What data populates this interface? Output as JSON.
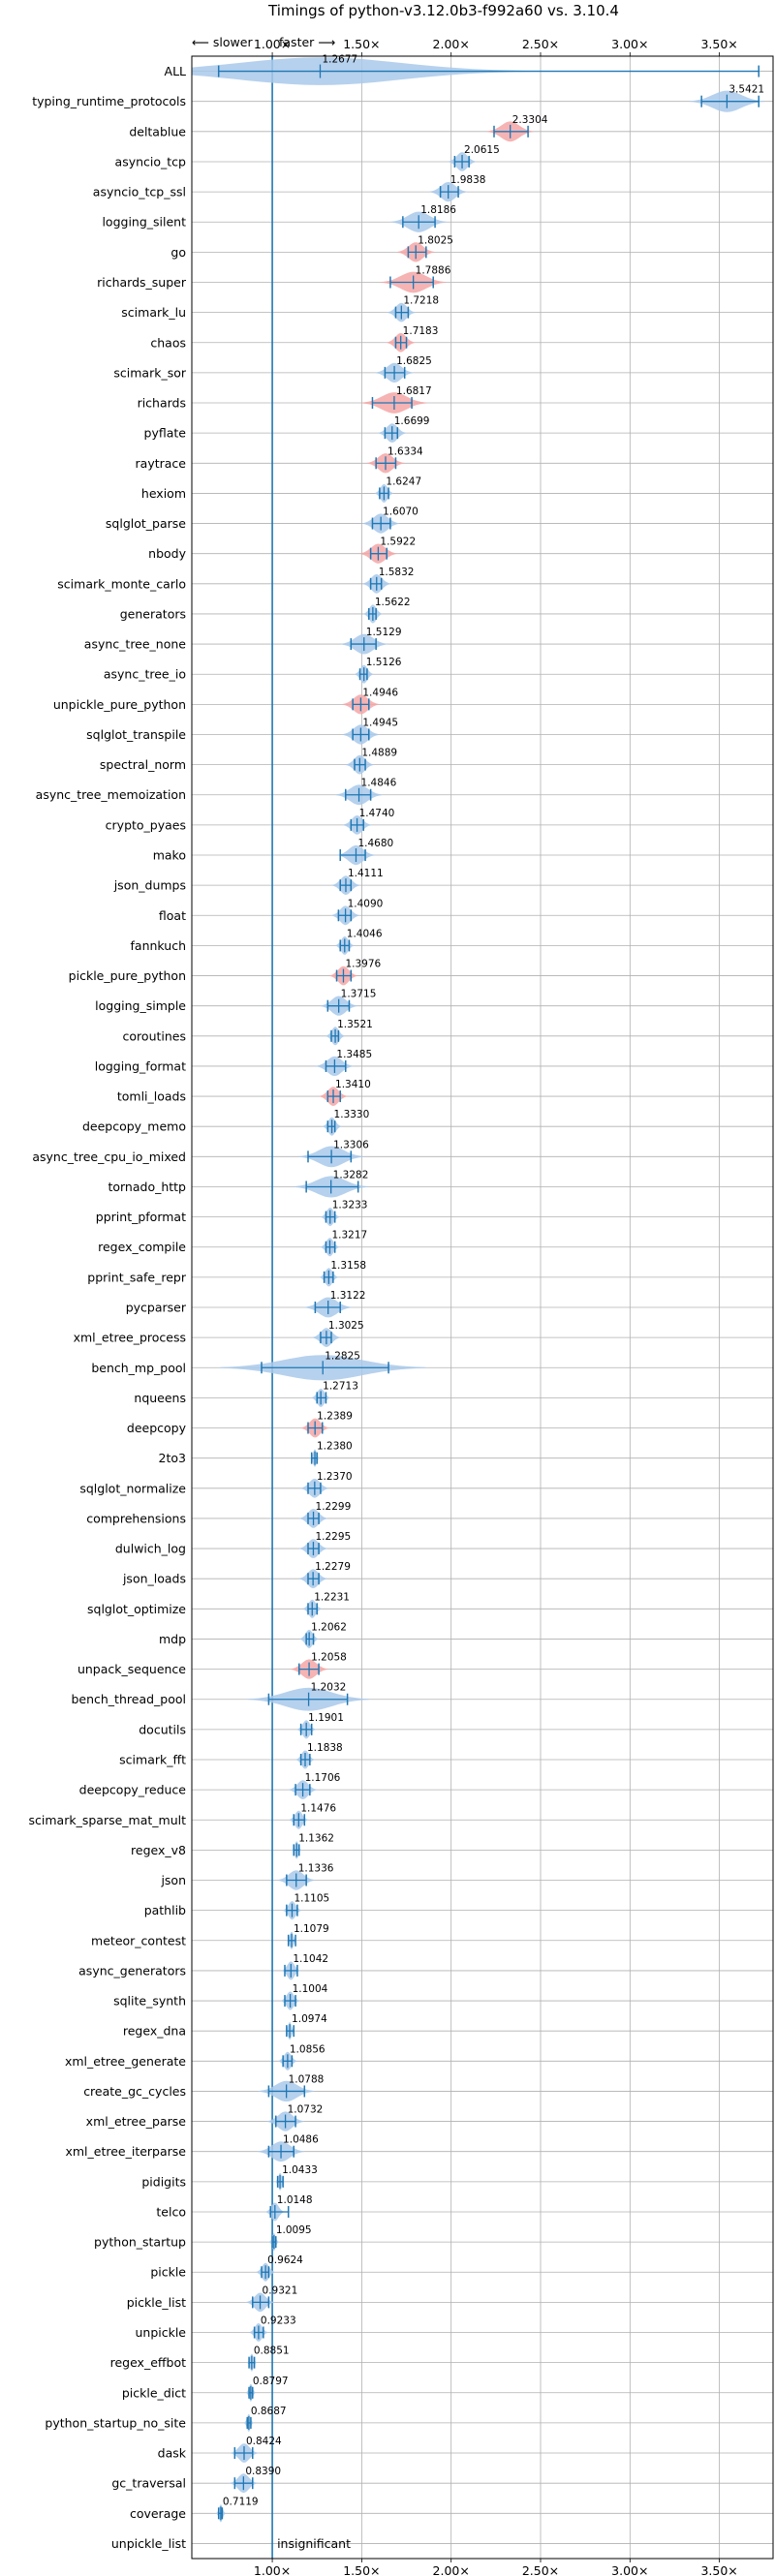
{
  "chart_data": {
    "type": "violin",
    "title": "Timings of python-v3.12.0b3-f992a60 vs. 3.10.4",
    "xlabel": "",
    "ylabel": "",
    "direction_left": "⟵ slower",
    "direction_right": "faster ⟶",
    "xlim": [
      0.55,
      3.8
    ],
    "xticks": [
      1.0,
      1.5,
      2.0,
      2.5,
      3.0,
      3.5
    ],
    "xtick_labels": [
      "1.00×",
      "1.50×",
      "2.00×",
      "2.50×",
      "3.00×",
      "3.50×"
    ],
    "grid": true,
    "reference_line": 1.0,
    "colors": {
      "faster": "#1f77b4",
      "slower_fill": "#f4a6a6",
      "fill": "#a9c9ea",
      "grid": "#b0b0b0"
    },
    "benchmarks": [
      {
        "name": "ALL",
        "value": 1.2677,
        "lo": 0.7,
        "hi": 3.72,
        "label": "1.2677",
        "color": "blue",
        "spread": 0.45
      },
      {
        "name": "typing_runtime_protocols",
        "value": 3.5421,
        "lo": 3.4,
        "hi": 3.72,
        "label": "3.5421",
        "color": "blue",
        "spread": 0.08
      },
      {
        "name": "deltablue",
        "value": 2.3304,
        "lo": 2.24,
        "hi": 2.43,
        "label": "2.3304",
        "color": "red",
        "spread": 0.05
      },
      {
        "name": "asyncio_tcp",
        "value": 2.0615,
        "lo": 2.02,
        "hi": 2.1,
        "label": "2.0615",
        "color": "blue",
        "spread": 0.03
      },
      {
        "name": "asyncio_tcp_ssl",
        "value": 1.9838,
        "lo": 1.94,
        "hi": 2.04,
        "label": "1.9838",
        "color": "blue",
        "spread": 0.04
      },
      {
        "name": "logging_silent",
        "value": 1.8186,
        "lo": 1.73,
        "hi": 1.91,
        "label": "1.8186",
        "color": "blue",
        "spread": 0.06
      },
      {
        "name": "go",
        "value": 1.8025,
        "lo": 1.76,
        "hi": 1.86,
        "label": "1.8025",
        "color": "red",
        "spread": 0.04
      },
      {
        "name": "richards_super",
        "value": 1.7886,
        "lo": 1.66,
        "hi": 1.9,
        "label": "1.7886",
        "color": "red",
        "spread": 0.07
      },
      {
        "name": "scimark_lu",
        "value": 1.7218,
        "lo": 1.69,
        "hi": 1.76,
        "label": "1.7218",
        "color": "blue",
        "spread": 0.03
      },
      {
        "name": "chaos",
        "value": 1.7183,
        "lo": 1.69,
        "hi": 1.75,
        "label": "1.7183",
        "color": "red",
        "spread": 0.03
      },
      {
        "name": "scimark_sor",
        "value": 1.6825,
        "lo": 1.63,
        "hi": 1.74,
        "label": "1.6825",
        "color": "blue",
        "spread": 0.04
      },
      {
        "name": "richards",
        "value": 1.6817,
        "lo": 1.56,
        "hi": 1.78,
        "label": "1.6817",
        "color": "red",
        "spread": 0.07
      },
      {
        "name": "pyflate",
        "value": 1.6699,
        "lo": 1.63,
        "hi": 1.7,
        "label": "1.6699",
        "color": "blue",
        "spread": 0.03
      },
      {
        "name": "raytrace",
        "value": 1.6334,
        "lo": 1.58,
        "hi": 1.69,
        "label": "1.6334",
        "color": "red",
        "spread": 0.04
      },
      {
        "name": "hexiom",
        "value": 1.6247,
        "lo": 1.6,
        "hi": 1.65,
        "label": "1.6247",
        "color": "blue",
        "spread": 0.02
      },
      {
        "name": "sqlglot_parse",
        "value": 1.607,
        "lo": 1.56,
        "hi": 1.66,
        "label": "1.6070",
        "color": "blue",
        "spread": 0.04
      },
      {
        "name": "nbody",
        "value": 1.5922,
        "lo": 1.55,
        "hi": 1.64,
        "label": "1.5922",
        "color": "red",
        "spread": 0.04
      },
      {
        "name": "scimark_monte_carlo",
        "value": 1.5832,
        "lo": 1.55,
        "hi": 1.61,
        "label": "1.5832",
        "color": "blue",
        "spread": 0.03
      },
      {
        "name": "generators",
        "value": 1.5622,
        "lo": 1.54,
        "hi": 1.58,
        "label": "1.5622",
        "color": "blue",
        "spread": 0.02
      },
      {
        "name": "async_tree_none",
        "value": 1.5129,
        "lo": 1.44,
        "hi": 1.58,
        "label": "1.5129",
        "color": "blue",
        "spread": 0.05
      },
      {
        "name": "async_tree_io",
        "value": 1.5126,
        "lo": 1.49,
        "hi": 1.53,
        "label": "1.5126",
        "color": "blue",
        "spread": 0.02
      },
      {
        "name": "unpickle_pure_python",
        "value": 1.4946,
        "lo": 1.45,
        "hi": 1.54,
        "label": "1.4946",
        "color": "red",
        "spread": 0.04
      },
      {
        "name": "sqlglot_transpile",
        "value": 1.4945,
        "lo": 1.45,
        "hi": 1.54,
        "label": "1.4945",
        "color": "blue",
        "spread": 0.04
      },
      {
        "name": "spectral_norm",
        "value": 1.4889,
        "lo": 1.46,
        "hi": 1.52,
        "label": "1.4889",
        "color": "blue",
        "spread": 0.03
      },
      {
        "name": "async_tree_memoization",
        "value": 1.4846,
        "lo": 1.41,
        "hi": 1.55,
        "label": "1.4846",
        "color": "blue",
        "spread": 0.05
      },
      {
        "name": "crypto_pyaes",
        "value": 1.474,
        "lo": 1.44,
        "hi": 1.51,
        "label": "1.4740",
        "color": "blue",
        "spread": 0.03
      },
      {
        "name": "mako",
        "value": 1.468,
        "lo": 1.38,
        "hi": 1.52,
        "label": "1.4680",
        "color": "blue",
        "spread": 0.04
      },
      {
        "name": "json_dumps",
        "value": 1.4111,
        "lo": 1.38,
        "hi": 1.44,
        "label": "1.4111",
        "color": "blue",
        "spread": 0.03
      },
      {
        "name": "float",
        "value": 1.409,
        "lo": 1.37,
        "hi": 1.44,
        "label": "1.4090",
        "color": "blue",
        "spread": 0.03
      },
      {
        "name": "fannkuch",
        "value": 1.4046,
        "lo": 1.38,
        "hi": 1.43,
        "label": "1.4046",
        "color": "blue",
        "spread": 0.02
      },
      {
        "name": "pickle_pure_python",
        "value": 1.3976,
        "lo": 1.36,
        "hi": 1.44,
        "label": "1.3976",
        "color": "red",
        "spread": 0.03
      },
      {
        "name": "logging_simple",
        "value": 1.3715,
        "lo": 1.31,
        "hi": 1.43,
        "label": "1.3715",
        "color": "blue",
        "spread": 0.04
      },
      {
        "name": "coroutines",
        "value": 1.3521,
        "lo": 1.33,
        "hi": 1.37,
        "label": "1.3521",
        "color": "blue",
        "spread": 0.02
      },
      {
        "name": "logging_format",
        "value": 1.3485,
        "lo": 1.3,
        "hi": 1.41,
        "label": "1.3485",
        "color": "blue",
        "spread": 0.04
      },
      {
        "name": "tomli_loads",
        "value": 1.341,
        "lo": 1.31,
        "hi": 1.38,
        "label": "1.3410",
        "color": "red",
        "spread": 0.03
      },
      {
        "name": "deepcopy_memo",
        "value": 1.333,
        "lo": 1.31,
        "hi": 1.35,
        "label": "1.3330",
        "color": "blue",
        "spread": 0.02
      },
      {
        "name": "async_tree_cpu_io_mixed",
        "value": 1.3306,
        "lo": 1.2,
        "hi": 1.44,
        "label": "1.3306",
        "color": "blue",
        "spread": 0.07
      },
      {
        "name": "tornado_http",
        "value": 1.3282,
        "lo": 1.19,
        "hi": 1.48,
        "label": "1.3282",
        "color": "blue",
        "spread": 0.08
      },
      {
        "name": "pprint_pformat",
        "value": 1.3233,
        "lo": 1.3,
        "hi": 1.35,
        "label": "1.3233",
        "color": "blue",
        "spread": 0.02
      },
      {
        "name": "regex_compile",
        "value": 1.3217,
        "lo": 1.3,
        "hi": 1.35,
        "label": "1.3217",
        "color": "blue",
        "spread": 0.02
      },
      {
        "name": "pprint_safe_repr",
        "value": 1.3158,
        "lo": 1.29,
        "hi": 1.34,
        "label": "1.3158",
        "color": "blue",
        "spread": 0.02
      },
      {
        "name": "pycparser",
        "value": 1.3122,
        "lo": 1.24,
        "hi": 1.38,
        "label": "1.3122",
        "color": "blue",
        "spread": 0.05
      },
      {
        "name": "xml_etree_process",
        "value": 1.3025,
        "lo": 1.27,
        "hi": 1.33,
        "label": "1.3025",
        "color": "blue",
        "spread": 0.03
      },
      {
        "name": "bench_mp_pool",
        "value": 1.2825,
        "lo": 0.94,
        "hi": 1.65,
        "label": "1.2825",
        "color": "blue",
        "spread": 0.22
      },
      {
        "name": "nqueens",
        "value": 1.2713,
        "lo": 1.25,
        "hi": 1.3,
        "label": "1.2713",
        "color": "blue",
        "spread": 0.02
      },
      {
        "name": "deepcopy",
        "value": 1.2389,
        "lo": 1.2,
        "hi": 1.28,
        "label": "1.2389",
        "color": "red",
        "spread": 0.03
      },
      {
        "name": "2to3",
        "value": 1.238,
        "lo": 1.22,
        "hi": 1.25,
        "label": "1.2380",
        "color": "blue",
        "spread": 0.01
      },
      {
        "name": "sqlglot_normalize",
        "value": 1.237,
        "lo": 1.2,
        "hi": 1.27,
        "label": "1.2370",
        "color": "blue",
        "spread": 0.03
      },
      {
        "name": "comprehensions",
        "value": 1.2299,
        "lo": 1.2,
        "hi": 1.26,
        "label": "1.2299",
        "color": "blue",
        "spread": 0.03
      },
      {
        "name": "dulwich_log",
        "value": 1.2295,
        "lo": 1.2,
        "hi": 1.26,
        "label": "1.2295",
        "color": "blue",
        "spread": 0.03
      },
      {
        "name": "json_loads",
        "value": 1.2279,
        "lo": 1.2,
        "hi": 1.26,
        "label": "1.2279",
        "color": "blue",
        "spread": 0.03
      },
      {
        "name": "sqlglot_optimize",
        "value": 1.2231,
        "lo": 1.2,
        "hi": 1.25,
        "label": "1.2231",
        "color": "blue",
        "spread": 0.02
      },
      {
        "name": "mdp",
        "value": 1.2062,
        "lo": 1.19,
        "hi": 1.23,
        "label": "1.2062",
        "color": "blue",
        "spread": 0.02
      },
      {
        "name": "unpack_sequence",
        "value": 1.2058,
        "lo": 1.15,
        "hi": 1.26,
        "label": "1.2058",
        "color": "red",
        "spread": 0.04
      },
      {
        "name": "bench_thread_pool",
        "value": 1.2032,
        "lo": 0.98,
        "hi": 1.42,
        "label": "1.2032",
        "color": "blue",
        "spread": 0.13
      },
      {
        "name": "docutils",
        "value": 1.1901,
        "lo": 1.16,
        "hi": 1.22,
        "label": "1.1901",
        "color": "blue",
        "spread": 0.02
      },
      {
        "name": "scimark_fft",
        "value": 1.1838,
        "lo": 1.16,
        "hi": 1.21,
        "label": "1.1838",
        "color": "blue",
        "spread": 0.02
      },
      {
        "name": "deepcopy_reduce",
        "value": 1.1706,
        "lo": 1.13,
        "hi": 1.21,
        "label": "1.1706",
        "color": "blue",
        "spread": 0.03
      },
      {
        "name": "scimark_sparse_mat_mult",
        "value": 1.1476,
        "lo": 1.12,
        "hi": 1.18,
        "label": "1.1476",
        "color": "blue",
        "spread": 0.02
      },
      {
        "name": "regex_v8",
        "value": 1.1362,
        "lo": 1.12,
        "hi": 1.15,
        "label": "1.1362",
        "color": "blue",
        "spread": 0.01
      },
      {
        "name": "json",
        "value": 1.1336,
        "lo": 1.08,
        "hi": 1.19,
        "label": "1.1336",
        "color": "blue",
        "spread": 0.04
      },
      {
        "name": "pathlib",
        "value": 1.1105,
        "lo": 1.08,
        "hi": 1.14,
        "label": "1.1105",
        "color": "blue",
        "spread": 0.02
      },
      {
        "name": "meteor_contest",
        "value": 1.1079,
        "lo": 1.09,
        "hi": 1.13,
        "label": "1.1079",
        "color": "blue",
        "spread": 0.01
      },
      {
        "name": "async_generators",
        "value": 1.1042,
        "lo": 1.07,
        "hi": 1.14,
        "label": "1.1042",
        "color": "blue",
        "spread": 0.02
      },
      {
        "name": "sqlite_synth",
        "value": 1.1004,
        "lo": 1.07,
        "hi": 1.13,
        "label": "1.1004",
        "color": "blue",
        "spread": 0.02
      },
      {
        "name": "regex_dna",
        "value": 1.0974,
        "lo": 1.08,
        "hi": 1.12,
        "label": "1.0974",
        "color": "blue",
        "spread": 0.01
      },
      {
        "name": "xml_etree_generate",
        "value": 1.0856,
        "lo": 1.06,
        "hi": 1.11,
        "label": "1.0856",
        "color": "blue",
        "spread": 0.02
      },
      {
        "name": "create_gc_cycles",
        "value": 1.0788,
        "lo": 0.98,
        "hi": 1.18,
        "label": "1.0788",
        "color": "blue",
        "spread": 0.06
      },
      {
        "name": "xml_etree_parse",
        "value": 1.0732,
        "lo": 1.02,
        "hi": 1.13,
        "label": "1.0732",
        "color": "blue",
        "spread": 0.04
      },
      {
        "name": "xml_etree_iterparse",
        "value": 1.0486,
        "lo": 0.98,
        "hi": 1.12,
        "label": "1.0486",
        "color": "blue",
        "spread": 0.05
      },
      {
        "name": "pidigits",
        "value": 1.0433,
        "lo": 1.03,
        "hi": 1.06,
        "label": "1.0433",
        "color": "blue",
        "spread": 0.01
      },
      {
        "name": "telco",
        "value": 1.0148,
        "lo": 0.99,
        "hi": 1.09,
        "label": "1.0148",
        "color": "blue",
        "spread": 0.02
      },
      {
        "name": "python_startup",
        "value": 1.0095,
        "lo": 1.0,
        "hi": 1.02,
        "label": "1.0095",
        "color": "blue",
        "spread": 0.01
      },
      {
        "name": "pickle",
        "value": 0.9624,
        "lo": 0.94,
        "hi": 0.98,
        "label": "0.9624",
        "color": "blue",
        "spread": 0.02
      },
      {
        "name": "pickle_list",
        "value": 0.9321,
        "lo": 0.89,
        "hi": 0.98,
        "label": "0.9321",
        "color": "blue",
        "spread": 0.03
      },
      {
        "name": "unpickle",
        "value": 0.9233,
        "lo": 0.9,
        "hi": 0.95,
        "label": "0.9233",
        "color": "blue",
        "spread": 0.02
      },
      {
        "name": "regex_effbot",
        "value": 0.8851,
        "lo": 0.87,
        "hi": 0.9,
        "label": "0.8851",
        "color": "blue",
        "spread": 0.01
      },
      {
        "name": "pickle_dict",
        "value": 0.8797,
        "lo": 0.87,
        "hi": 0.89,
        "label": "0.8797",
        "color": "blue",
        "spread": 0.01
      },
      {
        "name": "python_startup_no_site",
        "value": 0.8687,
        "lo": 0.86,
        "hi": 0.88,
        "label": "0.8687",
        "color": "blue",
        "spread": 0.01
      },
      {
        "name": "dask",
        "value": 0.8424,
        "lo": 0.79,
        "hi": 0.89,
        "label": "0.8424",
        "color": "blue",
        "spread": 0.03
      },
      {
        "name": "gc_traversal",
        "value": 0.839,
        "lo": 0.79,
        "hi": 0.89,
        "label": "0.8390",
        "color": "blue",
        "spread": 0.03
      },
      {
        "name": "coverage",
        "value": 0.7119,
        "lo": 0.7,
        "hi": 0.72,
        "label": "0.7119",
        "color": "blue",
        "spread": 0.01
      },
      {
        "name": "unpickle_list",
        "value": null,
        "lo": null,
        "hi": null,
        "label": "insignificant",
        "color": "none",
        "spread": 0
      }
    ]
  }
}
